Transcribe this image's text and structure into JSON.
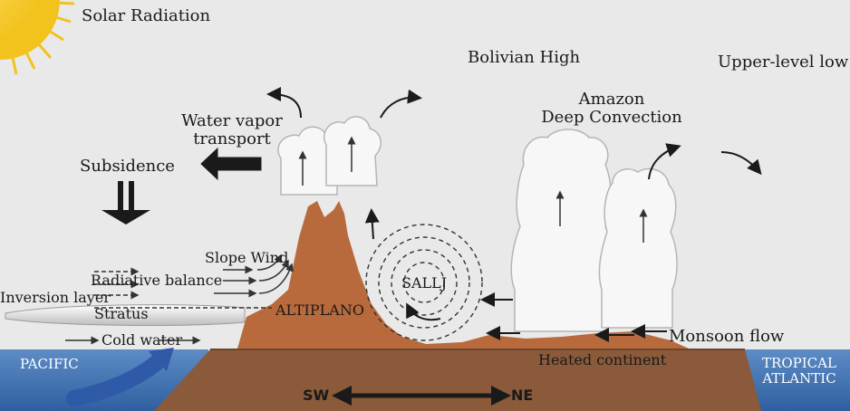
{
  "labels": {
    "solar_radiation": "Solar Radiation",
    "bolivian_high": "Bolivian High",
    "upper_level_low": "Upper-level low",
    "water_vapor_line1": "Water vapor",
    "water_vapor_line2": "transport",
    "amazon_line1": "Amazon",
    "amazon_line2": "Deep Convection",
    "subsidence": "Subsidence",
    "slope_wind": "Slope Wind",
    "radiative_balance": "Radiative balance",
    "inversion_layer": "Inversion layer",
    "stratus": "Stratus",
    "sallj": "SALLJ",
    "altiplano": "ALTIPLANO",
    "cold_water": "Cold water",
    "monsoon_flow": "Monsoon flow",
    "heated_continent": "Heated continent",
    "pacific": "PACIFIC",
    "tropical_line1": "TROPICAL",
    "tropical_line2": "ATLANTIC",
    "sw": "SW",
    "ne": "NE"
  },
  "colors": {
    "sky": "#e9e9e9",
    "ocean": "#4a78b4",
    "land": "#8a5a3a",
    "mountain": "#b96a3c",
    "cloud": "#f7f7f7",
    "cloud_stroke": "#b5b5b5",
    "sun": "#f7d94c",
    "arrow": "#1a1a1a"
  }
}
